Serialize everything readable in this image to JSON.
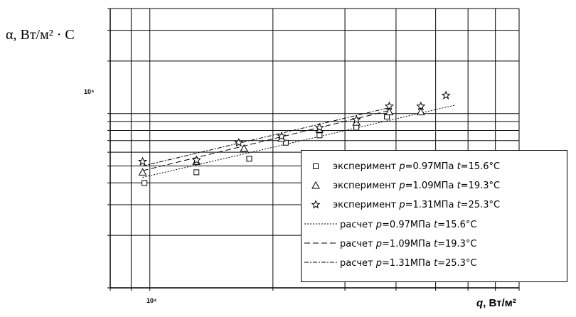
{
  "chart_data": {
    "type": "scatter",
    "title": "",
    "ylabel": "α, Вт/м² · С",
    "xlabel_var": "q",
    "xlabel_unit": ", Вт/м²",
    "x_scale": "log",
    "y_scale": "log",
    "xlim": [
      8000,
      80000
    ],
    "ylim": [
      1000,
      40000
    ],
    "x_tick_label": "10⁴",
    "y_tick_label": "10⁴",
    "grid": true,
    "legend_position": "bottom-right",
    "series": [
      {
        "name": "эксперимент p=0.97МПа t=15.6°C",
        "kind": "points",
        "marker": "square",
        "label_word": "эксперимент",
        "p_label": "p",
        "p_val": "=0.97МПа",
        "t_label": "t",
        "t_val": "=15.6°C",
        "x": [
          9700,
          13000,
          17500,
          21500,
          26000,
          32000,
          38000
        ],
        "y": [
          4000,
          4600,
          5500,
          6800,
          7500,
          8300,
          9600
        ]
      },
      {
        "name": "эксперимент p=1.09МПа t=19.3°C",
        "kind": "points",
        "marker": "triangle",
        "label_word": "эксперимент",
        "p_label": "p",
        "p_val": "=1.09МПа",
        "t_label": "t",
        "t_val": "=19.3°C",
        "x": [
          9600,
          13000,
          17000,
          21000,
          26000,
          32000,
          38500,
          46000
        ],
        "y": [
          4600,
          5300,
          6300,
          7200,
          8100,
          8900,
          10200,
          10200
        ]
      },
      {
        "name": "эксперимент p=1.31МПа t=25.3°C",
        "kind": "points",
        "marker": "star",
        "label_word": "эксперимент",
        "p_label": "p",
        "p_val": "=1.31МПа",
        "t_label": "t",
        "t_val": "=25.3°C",
        "x": [
          9600,
          13000,
          16500,
          21000,
          26000,
          32000,
          38500,
          46000,
          53000
        ],
        "y": [
          5300,
          5400,
          6800,
          7400,
          8300,
          9200,
          11000,
          11000,
          12700
        ]
      },
      {
        "name": "расчет p=0.97МПа t=15.6°C",
        "kind": "line",
        "dash": "2,2",
        "label_word": "расчет",
        "p_label": "p",
        "p_val": "=0.97МПа",
        "t_label": "t",
        "t_val": "=15.6°C",
        "x": [
          9600,
          56000
        ],
        "y": [
          4300,
          11200
        ]
      },
      {
        "name": "расчет p=1.09МПа t=19.3°C",
        "kind": "line",
        "dash": "8,4",
        "label_word": "расчет",
        "p_label": "p",
        "p_val": "=1.09МПа",
        "t_label": "t",
        "t_val": "=19.3°C",
        "x": [
          9600,
          38500
        ],
        "y": [
          4700,
          10400
        ]
      },
      {
        "name": "расчет p=1.31МПа t=25.3°C",
        "kind": "line",
        "dash": "6,2,2,2",
        "label_word": "расчет",
        "p_label": "p",
        "p_val": "=1.31МПа",
        "t_label": "t",
        "t_val": "=25.3°C",
        "x": [
          9600,
          38500
        ],
        "y": [
          5000,
          10800
        ]
      }
    ]
  }
}
